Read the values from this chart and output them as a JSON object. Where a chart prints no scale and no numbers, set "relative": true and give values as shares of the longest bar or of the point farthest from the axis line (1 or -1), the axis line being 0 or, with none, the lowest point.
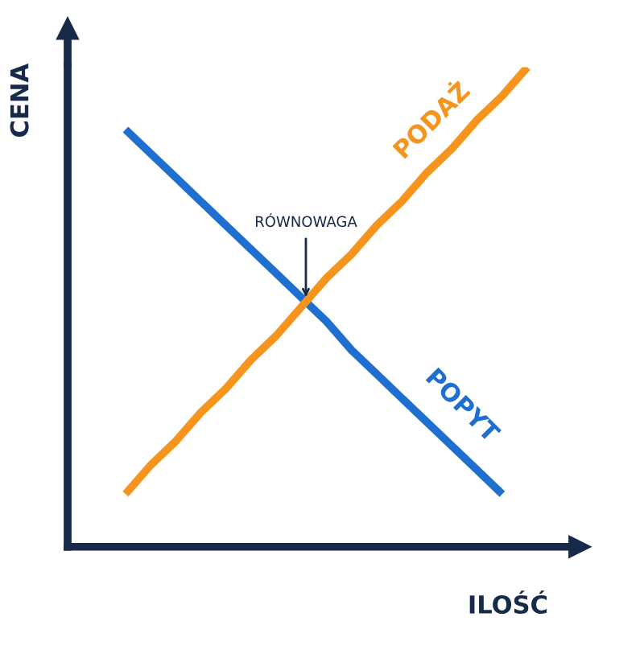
{
  "chart_data": {
    "type": "line",
    "relative": true,
    "xlabel": "ILOŚĆ",
    "ylabel": "CENA",
    "categories": [
      null,
      null,
      null,
      null,
      null,
      null,
      null,
      null,
      null,
      null,
      null,
      null,
      null,
      null,
      null,
      null,
      null
    ],
    "series": [
      {
        "name": "POPYT",
        "color": "#1f6fd1",
        "values": [
          0.87,
          0.82,
          0.77,
          0.72,
          0.67,
          0.62,
          0.57,
          0.52,
          0.47,
          0.41,
          0.36,
          0.31,
          0.26,
          0.21,
          0.16,
          0.11,
          null
        ]
      },
      {
        "name": "PODAŻ",
        "color": "#f7941d",
        "values": [
          0.11,
          0.17,
          0.22,
          0.28,
          0.33,
          0.39,
          0.44,
          0.5,
          0.56,
          0.61,
          0.67,
          0.72,
          0.78,
          0.83,
          0.89,
          0.94,
          1.0
        ]
      }
    ],
    "annotations": [
      "RÓWNOWAGA"
    ],
    "legend": false,
    "marker": "none",
    "line_style": "solid"
  }
}
